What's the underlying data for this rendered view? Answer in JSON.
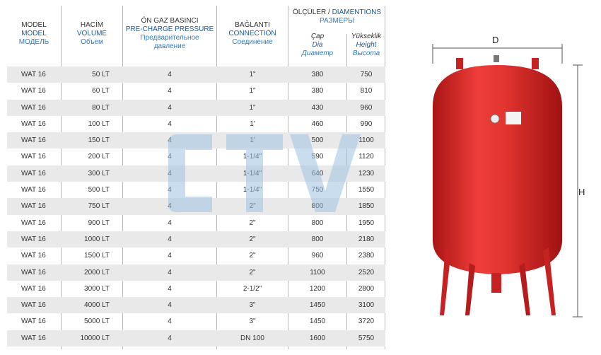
{
  "header": {
    "model": [
      "MODEL",
      "MODEL",
      "МОДЕЛЬ"
    ],
    "volume": [
      "HACİM",
      "VOLUME",
      "Объем"
    ],
    "pressure": [
      "ÖN GAZ BASINCI",
      "PRE-CHARGE PRESSURE",
      "Предварительное",
      "давление"
    ],
    "connection": [
      "BAĞLANTI",
      "CONNECTION",
      "Соединение"
    ],
    "dimensions_tr": "ÖLÇÜLER / ",
    "dimensions_en": "DIAMENTIONS",
    "dimensions_ru": "РАЗМЕРЫ",
    "dia": [
      "Çap",
      "Dia",
      "Диаметр"
    ],
    "height": [
      "Yükseklik",
      "Height",
      "Высота"
    ]
  },
  "rows": [
    {
      "model": "WAT 16",
      "volume": "50 LT",
      "pressure": "4",
      "connection": "1\"",
      "dia": "380",
      "height": "750"
    },
    {
      "model": "WAT 16",
      "volume": "60 LT",
      "pressure": "4",
      "connection": "1\"",
      "dia": "380",
      "height": "810"
    },
    {
      "model": "WAT 16",
      "volume": "80 LT",
      "pressure": "4",
      "connection": "1\"",
      "dia": "430",
      "height": "960"
    },
    {
      "model": "WAT 16",
      "volume": "100 LT",
      "pressure": "4",
      "connection": "1'",
      "dia": "460",
      "height": "990"
    },
    {
      "model": "WAT  16",
      "volume": "150 LT",
      "pressure": "4",
      "connection": "1'",
      "dia": "500",
      "height": "1100"
    },
    {
      "model": "WAT 16",
      "volume": "200 LT",
      "pressure": "4",
      "connection": "1-1/4\"",
      "dia": "590",
      "height": "1120"
    },
    {
      "model": "WAT 16",
      "volume": "300 LT",
      "pressure": "4",
      "connection": "1-1/4\"",
      "dia": "640",
      "height": "1230"
    },
    {
      "model": "WAT 16",
      "volume": "500 LT",
      "pressure": "4",
      "connection": "1-1/4\"",
      "dia": "750",
      "height": "1550"
    },
    {
      "model": "WAT 16",
      "volume": "750 LT",
      "pressure": "4",
      "connection": "2\"",
      "dia": "800",
      "height": "1850"
    },
    {
      "model": "WAT 16",
      "volume": "900 LT",
      "pressure": "4",
      "connection": "2\"",
      "dia": "800",
      "height": "1950"
    },
    {
      "model": "WAT 16",
      "volume": "1000 LT",
      "pressure": "4",
      "connection": "2\"",
      "dia": "800",
      "height": "2180"
    },
    {
      "model": "WAT 16",
      "volume": "1500 LT",
      "pressure": "4",
      "connection": "2\"",
      "dia": "960",
      "height": "2380"
    },
    {
      "model": "WAT 16",
      "volume": "2000 LT",
      "pressure": "4",
      "connection": "2\"",
      "dia": "1100",
      "height": "2520"
    },
    {
      "model": "WAT 16",
      "volume": "3000 LT",
      "pressure": "4",
      "connection": "2-1/2\"",
      "dia": "1200",
      "height": "2800"
    },
    {
      "model": "WAT 16",
      "volume": "4000 LT",
      "pressure": "4",
      "connection": "3\"",
      "dia": "1450",
      "height": "3100"
    },
    {
      "model": "WAT 16",
      "volume": "5000 LT",
      "pressure": "4",
      "connection": "3\"",
      "dia": "1450",
      "height": "3720"
    },
    {
      "model": "WAT 16",
      "volume": "10000 LT",
      "pressure": "4",
      "connection": "DN 100",
      "dia": "1600",
      "height": "5750"
    }
  ],
  "figure": {
    "label_d": "D",
    "label_h": "H"
  },
  "colors": {
    "tank_red": "#d92b2b",
    "header_blue": "#1a5aa0",
    "light_blue": "#2e7bc4",
    "row_gray": "#e9e9e9"
  }
}
